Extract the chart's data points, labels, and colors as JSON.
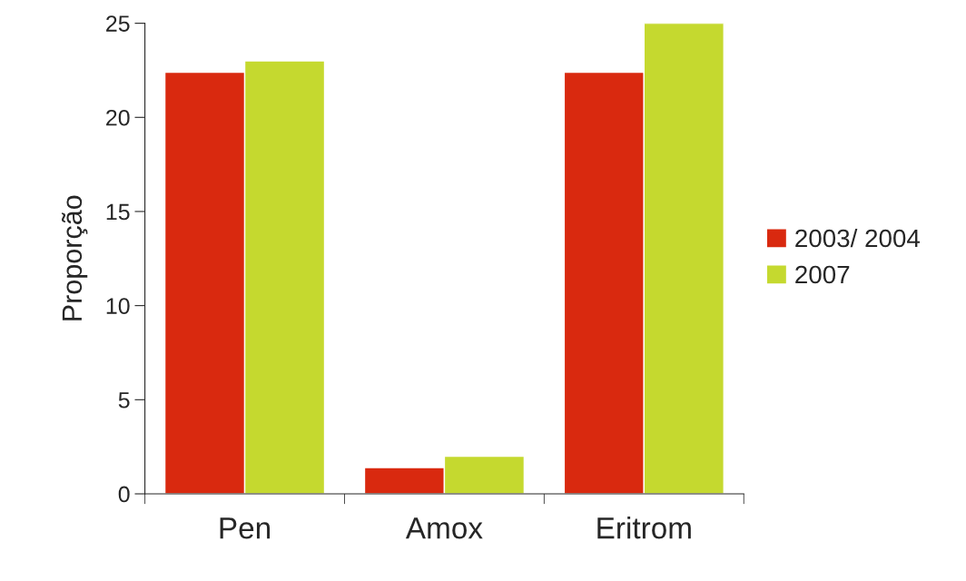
{
  "chart_data": {
    "type": "bar",
    "ylabel": "Proporção",
    "categories": [
      "Pen",
      "Amox",
      "Eritrom"
    ],
    "series": [
      {
        "name": "2003/ 2004",
        "color": "#d9290f",
        "values": [
          22.4,
          1.4,
          22.4
        ]
      },
      {
        "name": "2007",
        "color": "#c5d92f",
        "values": [
          23.0,
          2.0,
          25.0
        ]
      }
    ],
    "ylim": [
      0,
      25
    ],
    "yticks": [
      0,
      5,
      10,
      15,
      20,
      25
    ],
    "grid": false,
    "legend": "right"
  }
}
